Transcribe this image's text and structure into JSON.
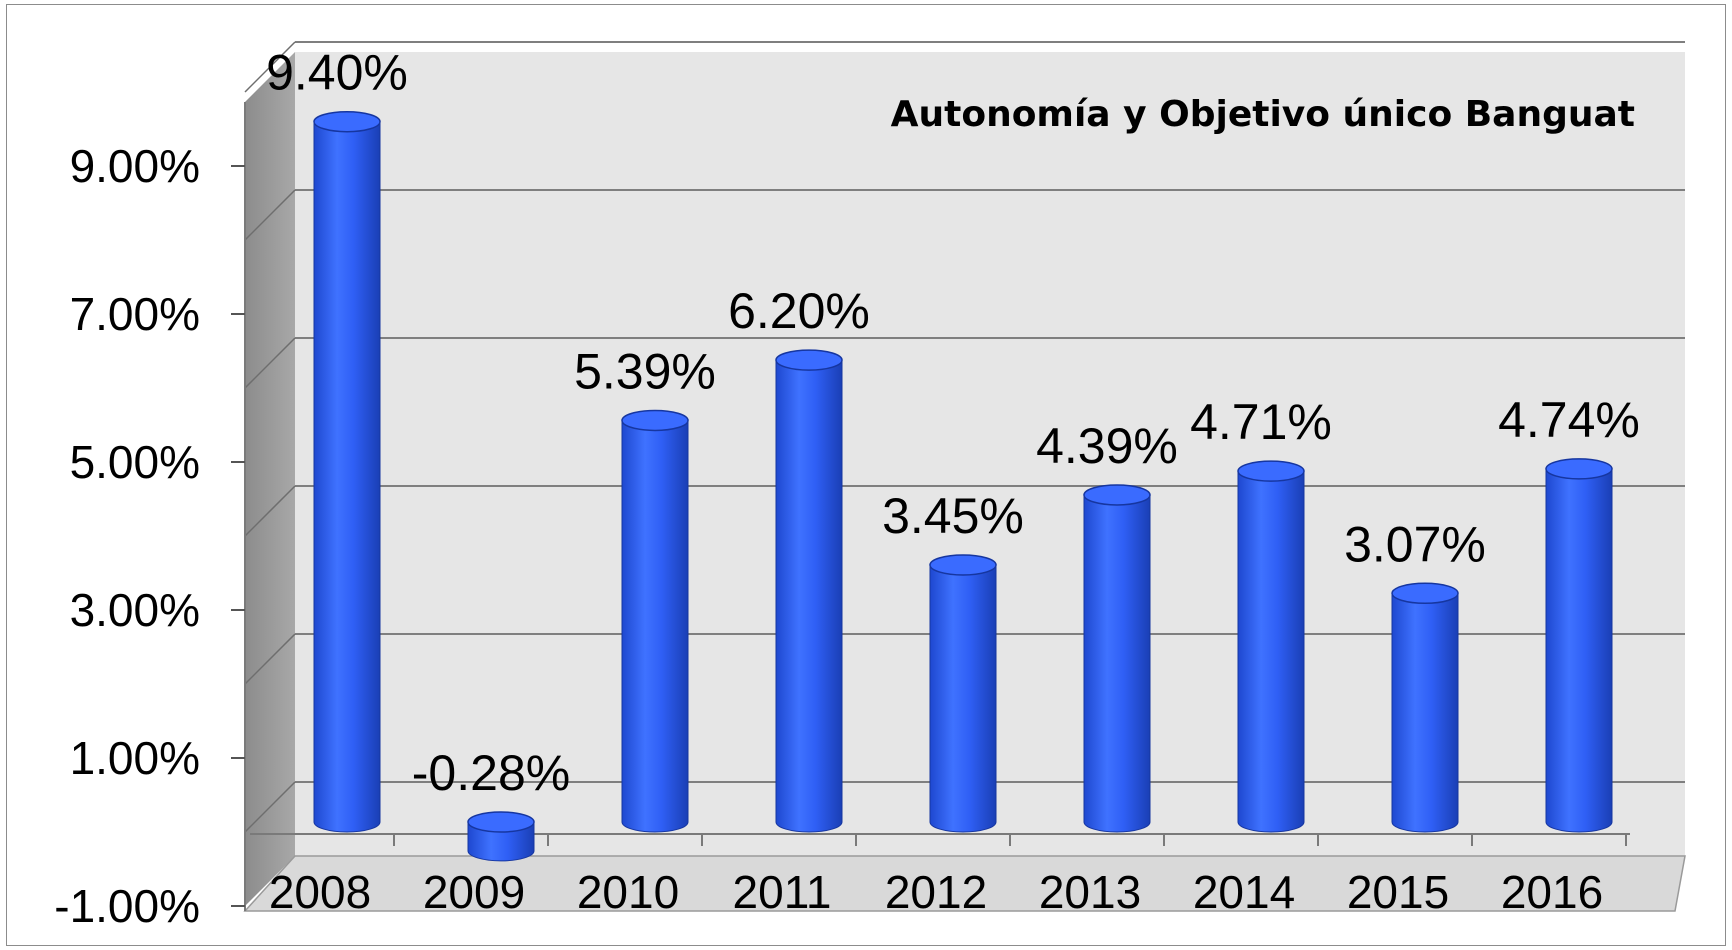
{
  "chart_data": {
    "type": "bar",
    "title": "Autonomía y Objetivo único Banguat",
    "categories": [
      "2008",
      "2009",
      "2010",
      "2011",
      "2012",
      "2013",
      "2014",
      "2015",
      "2016"
    ],
    "values": [
      9.4,
      -0.28,
      5.39,
      6.2,
      3.45,
      4.39,
      4.71,
      3.07,
      4.74
    ],
    "data_labels": [
      "9.40%",
      "-0.28%",
      "5.39%",
      "6.20%",
      "3.45%",
      "4.39%",
      "4.71%",
      "3.07%",
      "4.74%"
    ],
    "yticks": [
      -1,
      1,
      3,
      5,
      7,
      9
    ],
    "ytick_labels": [
      "-1.00%",
      "1.00%",
      "3.00%",
      "5.00%",
      "7.00%",
      "9.00%"
    ],
    "ylim": [
      -1,
      10
    ],
    "grid": true,
    "bar_style": "3d-cylinder",
    "colors": {
      "bar": "#2f5ff5",
      "bar_dark": "#173fb8",
      "bar_top": "#3a6bff",
      "wall": "#e6e6e6",
      "side_wall": "#8a8a8a",
      "floor": "#d9d9d9",
      "grid": "#7f7f7f"
    }
  }
}
